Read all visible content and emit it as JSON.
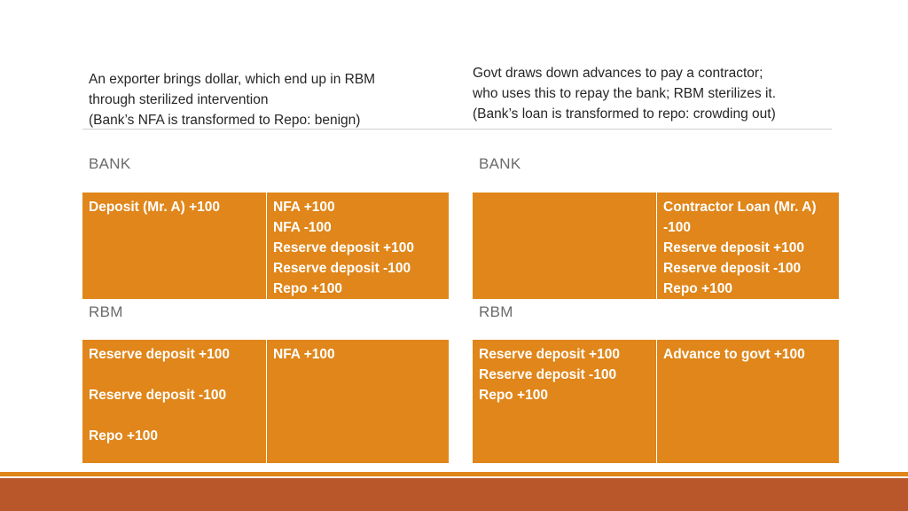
{
  "intro_left": [
    "An exporter brings dollar, which end up in RBM",
    "through sterilized intervention",
    "(Bank’s NFA is transformed to Repo: benign)"
  ],
  "intro_right": [
    "Govt draws down advances to pay a contractor;",
    "who uses this to repay the bank; RBM sterilizes it.",
    "(Bank’s loan is transformed to repo: crowding out)"
  ],
  "left": {
    "bank_heading": "BANK",
    "bank_liabilities": [
      "Deposit (Mr. A) +100"
    ],
    "bank_assets": [
      "NFA +100",
      "NFA -100",
      "Reserve deposit +100",
      "Reserve deposit -100",
      "Repo +100"
    ],
    "rbm_heading": "RBM",
    "rbm_liabilities": [
      "Reserve deposit +100",
      "",
      "Reserve deposit -100",
      "",
      "Repo +100"
    ],
    "rbm_assets": [
      "NFA +100"
    ]
  },
  "right": {
    "bank_heading": "BANK",
    "bank_liabilities": [],
    "bank_assets": [
      "Contractor Loan (Mr. A)",
      "-100",
      "Reserve deposit +100",
      "Reserve deposit -100",
      "Repo +100"
    ],
    "rbm_heading": "RBM",
    "rbm_liabilities": [
      "Reserve deposit +100",
      "Reserve deposit -100",
      "Repo +100"
    ],
    "rbm_assets": [
      "Advance to govt  +100"
    ]
  },
  "colors": {
    "cell_fill": "#e0861a",
    "footer_bar": "#b9572a",
    "heading_text": "#6b6b6b"
  }
}
